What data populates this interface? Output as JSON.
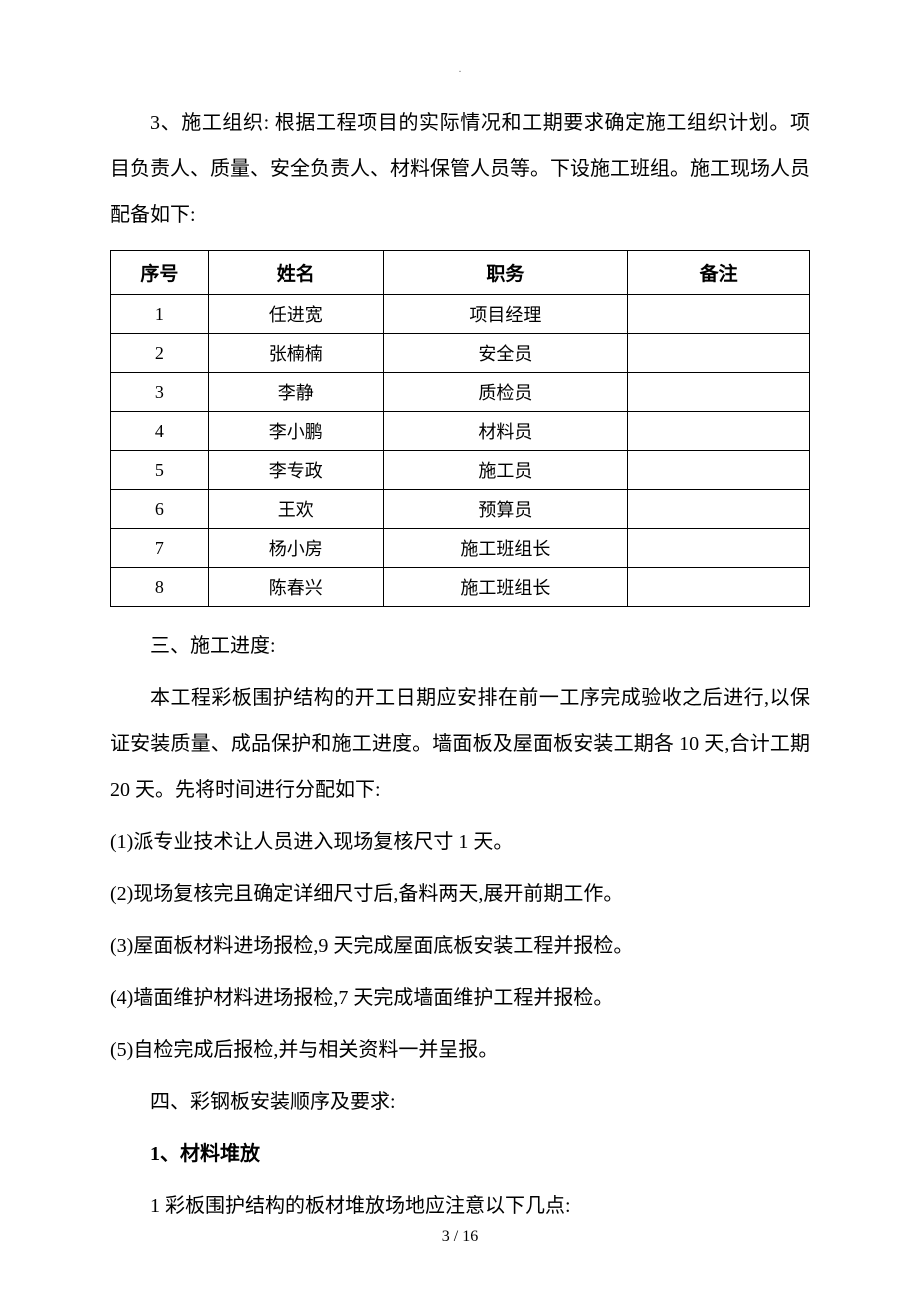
{
  "topDot": ".",
  "paragraphs": {
    "intro": "3、施工组织: 根据工程项目的实际情况和工期要求确定施工组织计划。项目负责人、质量、安全负责人、材料保管人员等。下设施工班组。施工现场人员配备如下:",
    "section3_title": "三、施工进度:",
    "section3_body": "本工程彩板围护结构的开工日期应安排在前一工序完成验收之后进行,以保证安装质量、成品保护和施工进度。墙面板及屋面板安装工期各 10 天,合计工期 20 天。先将时间进行分配如下:",
    "item1": "(1)派专业技术让人员进入现场复核尺寸 1 天。",
    "item2": "(2)现场复核完且确定详细尺寸后,备料两天,展开前期工作。",
    "item3": "(3)屋面板材料进场报检,9 天完成屋面底板安装工程并报检。",
    "item4": "(4)墙面维护材料进场报检,7 天完成墙面维护工程并报检。",
    "item5": "(5)自检完成后报检,并与相关资料一并呈报。",
    "section4_title": "四、彩钢板安装顺序及要求:",
    "sub1_title": "1、材料堆放",
    "sub1_body": "1 彩板围护结构的板材堆放场地应注意以下几点:"
  },
  "table": {
    "headers": {
      "c1": "序号",
      "c2": "姓名",
      "c3": "职务",
      "c4": "备注"
    },
    "rows": [
      {
        "num": "1",
        "name": "任进宽",
        "role": "项目经理",
        "note": ""
      },
      {
        "num": "2",
        "name": "张楠楠",
        "role": "安全员",
        "note": ""
      },
      {
        "num": "3",
        "name": "李静",
        "role": "质检员",
        "note": ""
      },
      {
        "num": "4",
        "name": "李小鹏",
        "role": "材料员",
        "note": ""
      },
      {
        "num": "5",
        "name": "李专政",
        "role": "施工员",
        "note": ""
      },
      {
        "num": "6",
        "name": "王欢",
        "role": "预算员",
        "note": ""
      },
      {
        "num": "7",
        "name": "杨小房",
        "role": "施工班组长",
        "note": ""
      },
      {
        "num": "8",
        "name": "陈春兴",
        "role": "施工班组长",
        "note": ""
      }
    ]
  },
  "pageNum": "3 / 16"
}
